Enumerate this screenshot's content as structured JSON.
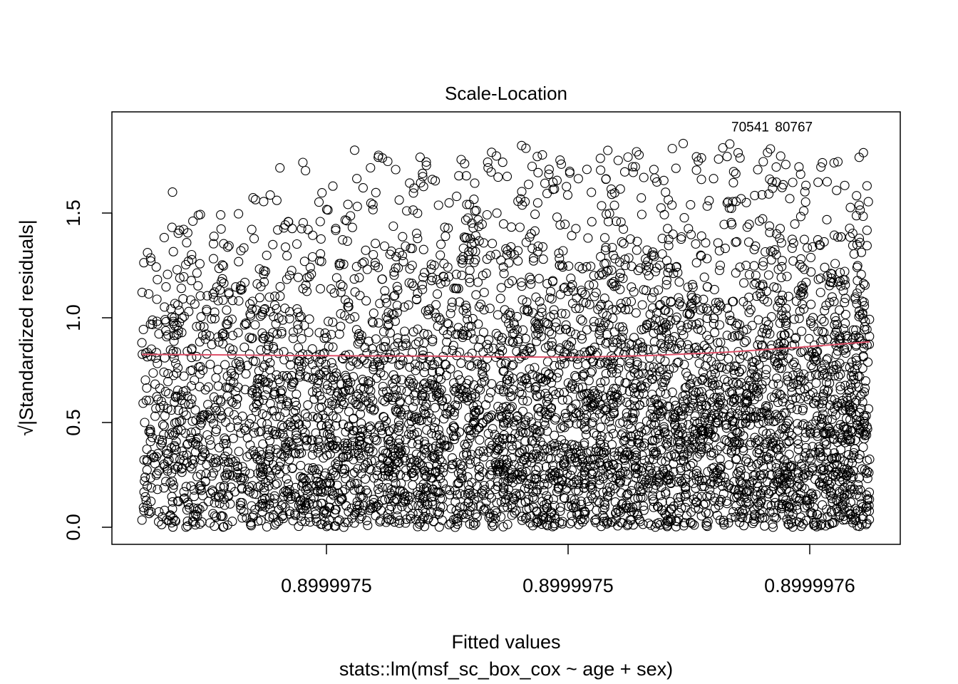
{
  "chart_data": {
    "type": "scatter",
    "title": "Scale-Location",
    "xlabel": "Fitted values",
    "subtitle": "stats::lm(msf_sc_box_cox ~ age + sex)",
    "ylabel": "√|Standardized residuals|",
    "x_tick_labels": [
      "0.8999975",
      "0.8999975",
      "0.8999976"
    ],
    "y_tick_labels": [
      "0.0",
      "0.5",
      "1.0",
      "1.5"
    ],
    "y_ticks": [
      0.0,
      0.5,
      1.0,
      1.5
    ],
    "ylim": [
      -0.08,
      1.94
    ],
    "grid": false,
    "point_color": "#000000",
    "smooth_color": "#DF536B",
    "smooth_line": {
      "x_rel": [
        0.0,
        0.1,
        0.2,
        0.3,
        0.4,
        0.5,
        0.6,
        0.7,
        0.8,
        0.9,
        1.0
      ],
      "y": [
        0.825,
        0.823,
        0.82,
        0.818,
        0.817,
        0.813,
        0.812,
        0.82,
        0.835,
        0.858,
        0.885
      ]
    },
    "point_annotations": [
      {
        "text": "70541",
        "x_rel": 0.81,
        "y": 1.91
      },
      {
        "text": "80767",
        "x_rel": 0.87,
        "y": 1.91
      }
    ],
    "points_summary": "dense cloud of open-circle points, approximate band 0.0 to 1.85"
  }
}
